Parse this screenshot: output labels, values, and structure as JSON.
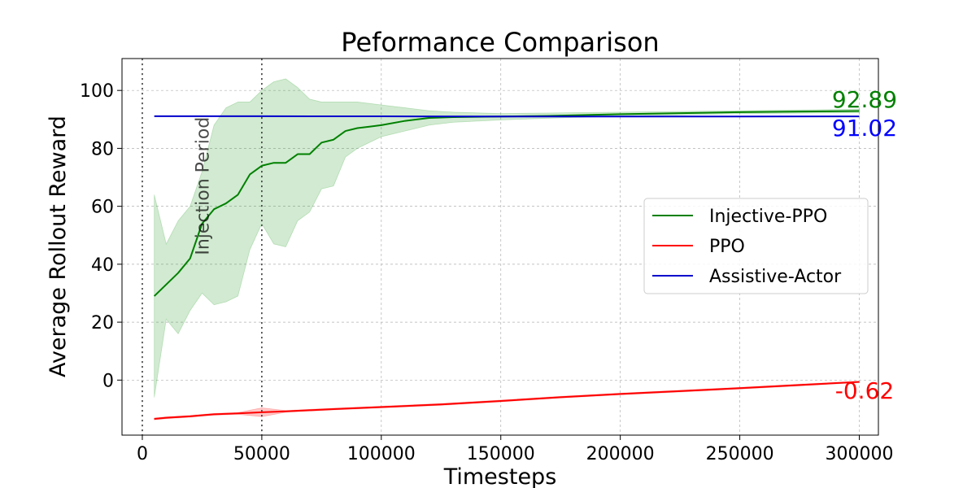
{
  "chart_data": {
    "type": "line",
    "title": "Peformance Comparison",
    "xlabel": "Timesteps",
    "ylabel": "Average Rollout Reward",
    "xlim": [
      -8500,
      308000
    ],
    "ylim": [
      -19,
      111
    ],
    "xticks": [
      0,
      50000,
      100000,
      150000,
      200000,
      250000,
      300000
    ],
    "yticks": [
      0,
      20,
      40,
      60,
      80,
      100
    ],
    "grid": true,
    "legend_position": "center-right",
    "vlines": [
      0,
      50000
    ],
    "annotations": [
      {
        "text": "Injection Period",
        "x": 25000,
        "y": 67,
        "rotation": -90
      }
    ],
    "series": [
      {
        "name": "Injective-PPO",
        "color": "#008000",
        "band_color": "#2ca02c",
        "end_label": "92.89",
        "x": [
          5000,
          10000,
          15000,
          20000,
          25000,
          30000,
          35000,
          40000,
          45000,
          50000,
          55000,
          60000,
          65000,
          70000,
          75000,
          80000,
          85000,
          90000,
          95000,
          100000,
          110000,
          120000,
          130000,
          150000,
          170000,
          200000,
          250000,
          300000
        ],
        "values": [
          29,
          33,
          37,
          42,
          54,
          59,
          61,
          64,
          71,
          74,
          75,
          75,
          78,
          78,
          82,
          83,
          86,
          87,
          87.5,
          88,
          89.5,
          90.5,
          90.8,
          91,
          91.2,
          91.8,
          92.5,
          92.89
        ],
        "upper": [
          64,
          47,
          55,
          60,
          72,
          88,
          94,
          96,
          96,
          100,
          103,
          104,
          101,
          97,
          96,
          96,
          96,
          96,
          95.5,
          95,
          94,
          93,
          92.5,
          92,
          92.2,
          92.5,
          93,
          93.5
        ],
        "lower": [
          -6,
          21,
          16,
          24,
          30,
          26,
          27,
          29,
          45,
          54,
          47,
          46,
          55,
          58,
          66,
          67,
          77,
          80,
          82,
          84,
          86,
          88,
          89,
          89.8,
          90.4,
          91.1,
          92,
          92.3
        ]
      },
      {
        "name": "PPO",
        "color": "#ff0000",
        "band_color": "#ff0000",
        "end_label": "-0.62",
        "x": [
          5000,
          10000,
          20000,
          30000,
          40000,
          50000,
          60000,
          80000,
          100000,
          125000,
          150000,
          175000,
          200000,
          225000,
          250000,
          275000,
          300000
        ],
        "values": [
          -13.4,
          -13.0,
          -12.5,
          -11.8,
          -11.5,
          -11.1,
          -10.8,
          -10.0,
          -9.3,
          -8.4,
          -7.2,
          -5.9,
          -4.8,
          -3.8,
          -2.8,
          -1.7,
          -0.62
        ],
        "upper": [
          -13.1,
          -12.7,
          -12.2,
          -11.5,
          -11.2,
          -9.6,
          -10.5,
          -9.7,
          -9.0,
          -8.1,
          -6.9,
          -5.6,
          -4.5,
          -3.5,
          -2.5,
          -1.4,
          -0.4
        ],
        "lower": [
          -13.7,
          -13.3,
          -12.8,
          -12.1,
          -11.8,
          -12.6,
          -11.1,
          -10.3,
          -9.6,
          -8.7,
          -7.5,
          -6.2,
          -5.1,
          -4.1,
          -3.1,
          -2.0,
          -0.84
        ]
      },
      {
        "name": "Assistive-Actor",
        "color": "#0000cc",
        "band_color": "#0000cc",
        "end_label": "91.02",
        "x": [
          5000,
          50000,
          100000,
          150000,
          200000,
          250000,
          300000
        ],
        "values": [
          91.1,
          91.1,
          91.05,
          91.0,
          91.0,
          91.0,
          91.02
        ]
      }
    ]
  }
}
